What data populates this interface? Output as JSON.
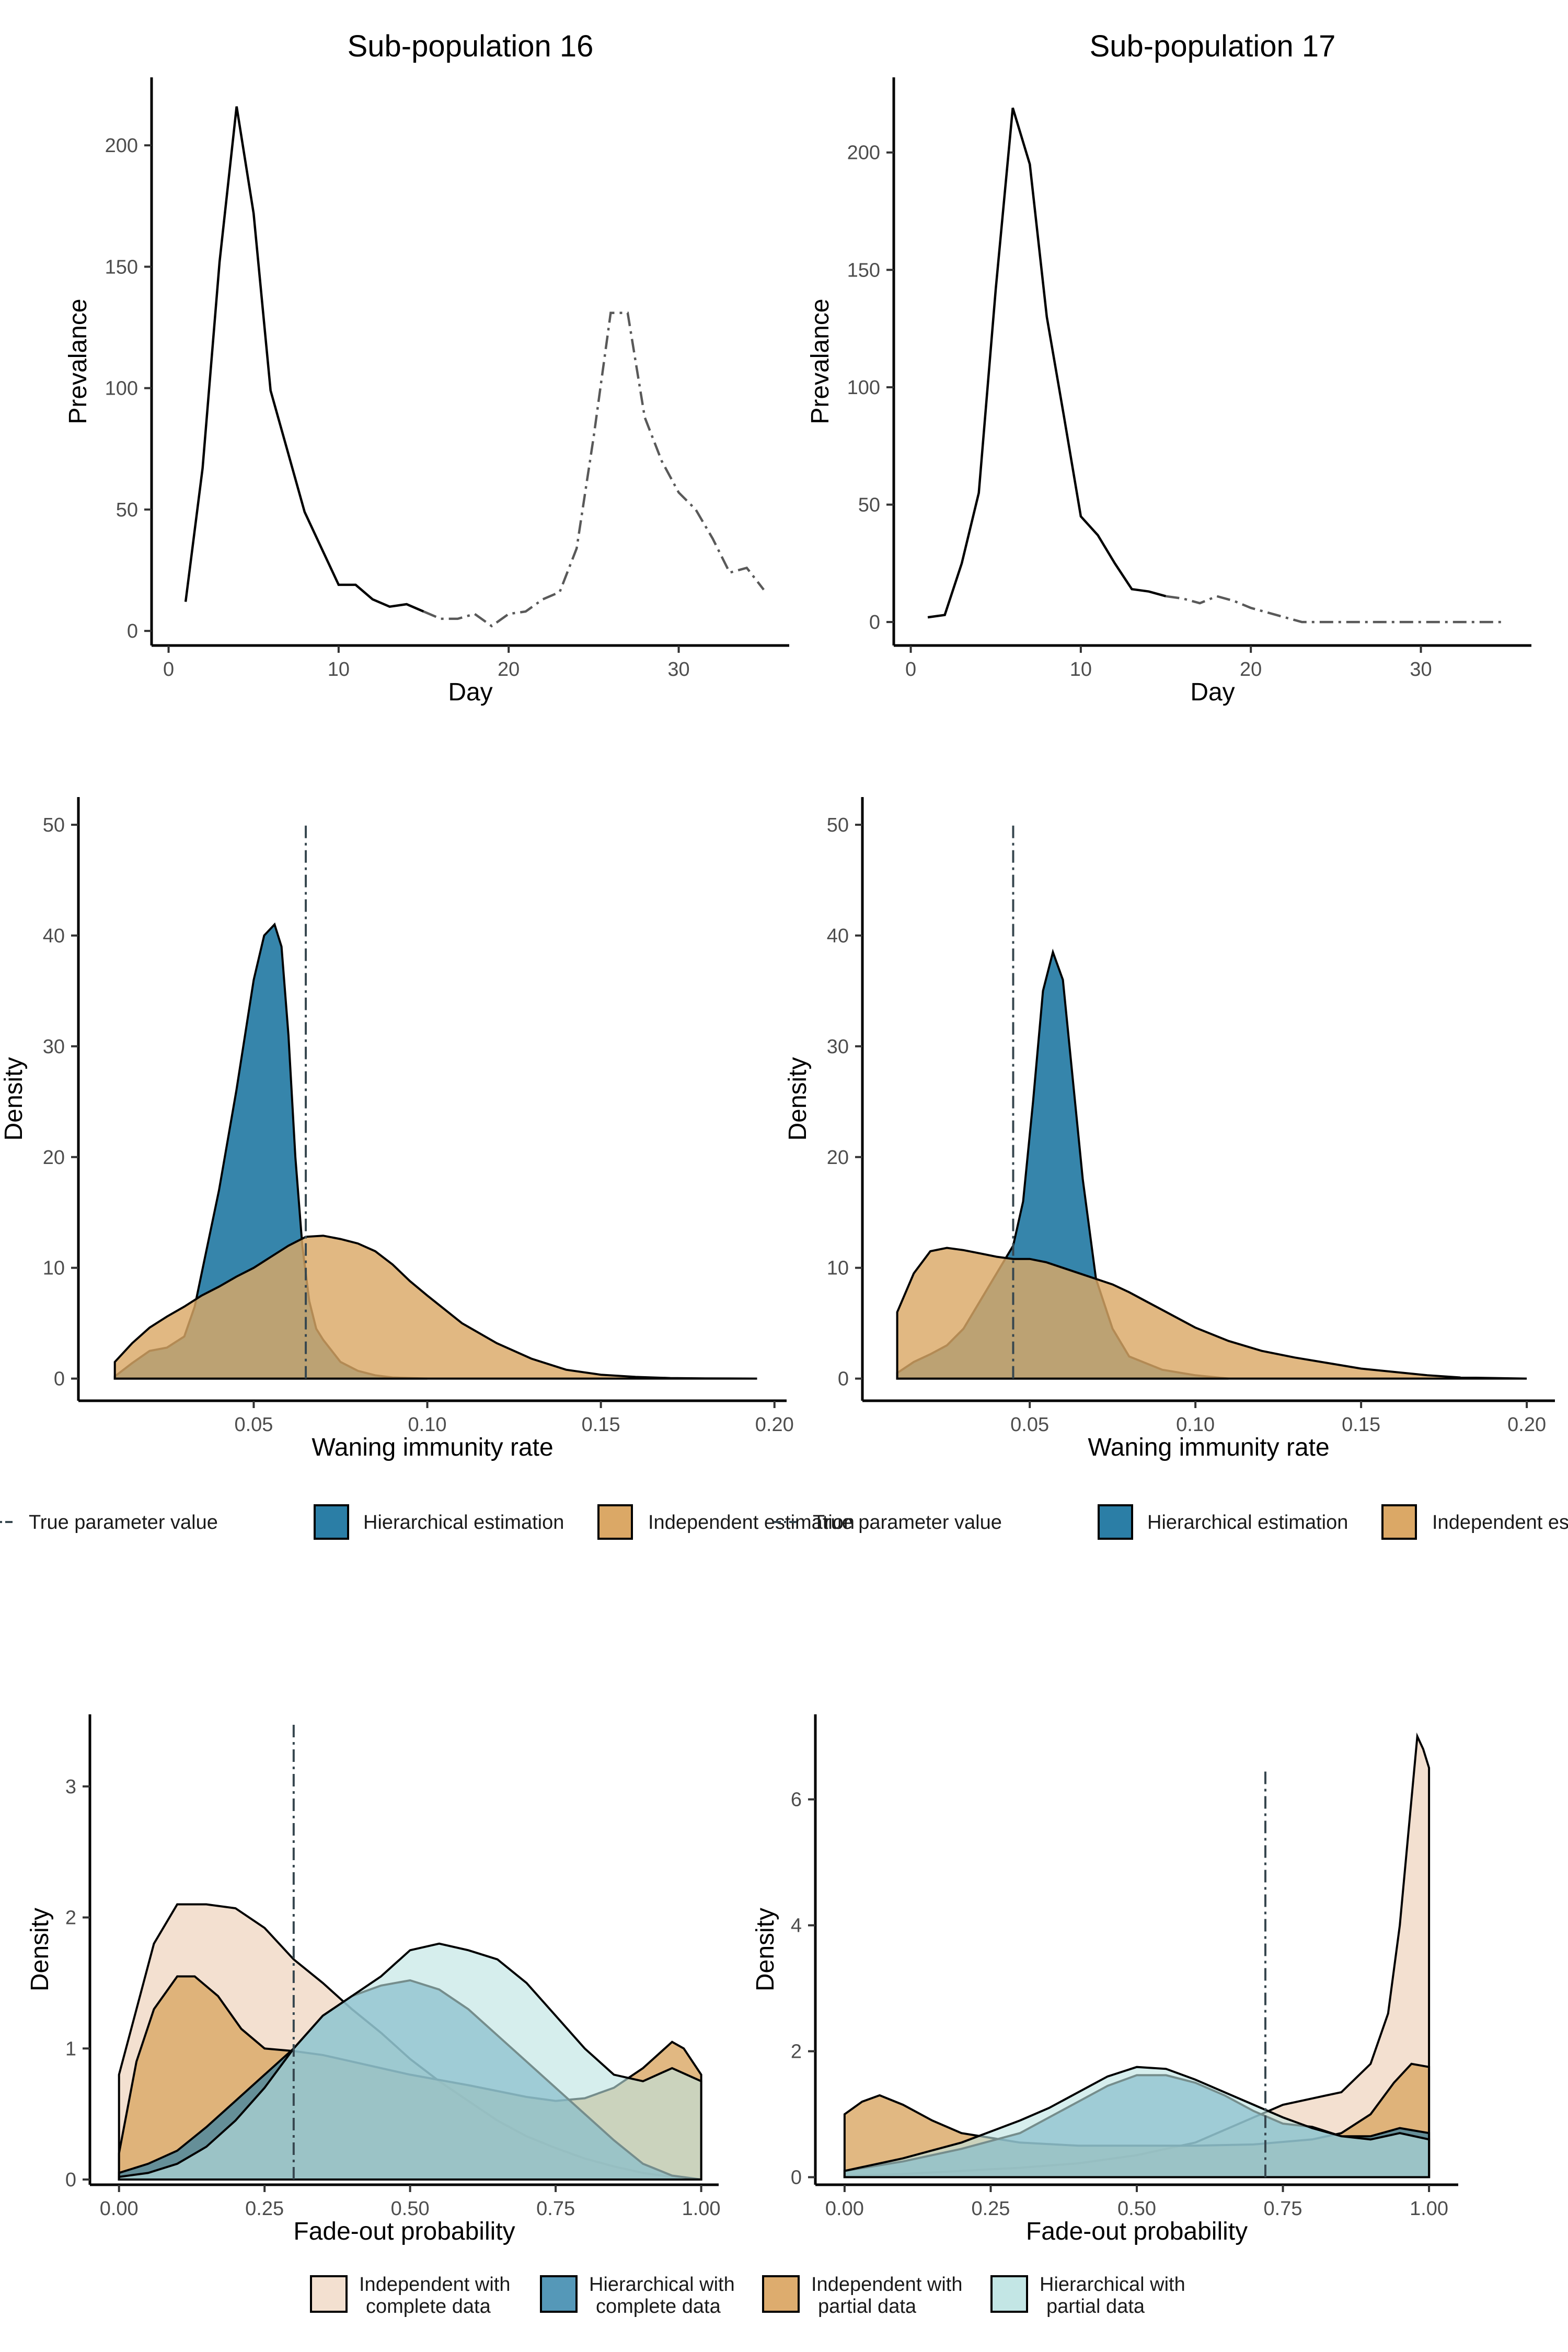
{
  "colors": {
    "hier_complete": "#2b7ea6",
    "indep_complete_fill": "#f0d9c6",
    "indep_partial": "#dba866",
    "hier_partial": "#bde3e2",
    "solid_line": "#000000",
    "dashed_line": "#595959",
    "true_line": "#37474f"
  },
  "prevalence": [
    {
      "title": "Sub-population 16",
      "xlabel": "Day",
      "ylabel": "Prevalance",
      "xlim": [
        -1,
        36.5
      ],
      "ylim": [
        -6,
        228
      ],
      "xticks": [
        0,
        10,
        20,
        30
      ],
      "yticks": [
        0,
        50,
        100,
        150,
        200
      ],
      "solid": {
        "x": [
          1,
          2,
          3,
          4,
          5,
          6,
          7,
          8,
          9,
          10,
          11,
          12,
          13,
          14,
          15
        ],
        "y": [
          12,
          67,
          152,
          216,
          172,
          99,
          74,
          49,
          34,
          19,
          19,
          13,
          10,
          11,
          8
        ]
      },
      "dashed": {
        "x": [
          15,
          16,
          17,
          18,
          19,
          20,
          21,
          22,
          23,
          24,
          25,
          26,
          27,
          28,
          29,
          30,
          31,
          32,
          33,
          34,
          35
        ],
        "y": [
          8,
          5,
          5,
          7,
          2,
          7,
          8,
          13,
          16,
          34,
          80,
          131,
          131,
          88,
          70,
          57,
          50,
          38,
          24,
          26,
          17
        ]
      }
    },
    {
      "title": "Sub-population 17",
      "xlabel": "Day",
      "ylabel": "Prevalance",
      "xlim": [
        -1,
        36.5
      ],
      "ylim": [
        -10,
        232
      ],
      "xticks": [
        0,
        10,
        20,
        30
      ],
      "yticks": [
        0,
        50,
        100,
        150,
        200
      ],
      "solid": {
        "x": [
          1,
          2,
          3,
          4,
          5,
          6,
          7,
          8,
          9,
          10,
          11,
          12,
          13,
          14,
          15
        ],
        "y": [
          2,
          3,
          25,
          55,
          142,
          219,
          195,
          130,
          88,
          45,
          37,
          25,
          14,
          13,
          11
        ]
      },
      "dashed": {
        "x": [
          15,
          16,
          17,
          18,
          19,
          20,
          21,
          22,
          23,
          24,
          25,
          26,
          27,
          28,
          29,
          30,
          31,
          32,
          33,
          34,
          35
        ],
        "y": [
          11,
          10,
          8,
          11,
          9,
          6,
          4,
          2,
          0,
          0,
          0,
          0,
          0,
          0,
          0,
          0,
          0,
          0,
          0,
          0,
          0
        ]
      }
    }
  ],
  "waning": [
    {
      "xlabel": "Waning immunity rate",
      "ylabel": "Density",
      "xlim": [
        -0.0005,
        0.2035
      ],
      "ylim": [
        -2,
        52.5
      ],
      "xticks": [
        0.05,
        0.1,
        0.15,
        0.2
      ],
      "xticklabels": [
        "0.05",
        "0.10",
        "0.15",
        "0.20"
      ],
      "yticks": [
        0,
        10,
        20,
        30,
        40,
        50
      ],
      "true_value": 0.065,
      "true_line_top": 50,
      "hierarchical": {
        "x": [
          0.01,
          0.015,
          0.02,
          0.025,
          0.03,
          0.033,
          0.036,
          0.04,
          0.045,
          0.05,
          0.053,
          0.056,
          0.058,
          0.06,
          0.062,
          0.064,
          0.066,
          0.068,
          0.07,
          0.075,
          0.08,
          0.085,
          0.09,
          0.1
        ],
        "y": [
          0.2,
          1.4,
          2.5,
          2.8,
          3.8,
          6.5,
          11,
          17,
          26,
          36,
          40,
          41,
          39,
          31,
          20,
          12,
          7,
          4.5,
          3.5,
          1.5,
          0.7,
          0.3,
          0.1,
          0
        ]
      },
      "independent": {
        "x": [
          0.01,
          0.015,
          0.02,
          0.025,
          0.03,
          0.035,
          0.04,
          0.045,
          0.05,
          0.055,
          0.06,
          0.065,
          0.07,
          0.075,
          0.08,
          0.085,
          0.09,
          0.095,
          0.1,
          0.11,
          0.12,
          0.13,
          0.14,
          0.15,
          0.16,
          0.17,
          0.18,
          0.195
        ],
        "y": [
          1.5,
          3.2,
          4.6,
          5.6,
          6.5,
          7.5,
          8.3,
          9.2,
          10,
          11,
          12,
          12.8,
          12.9,
          12.6,
          12.2,
          11.5,
          10.3,
          8.8,
          7.5,
          5,
          3.2,
          1.8,
          0.8,
          0.35,
          0.15,
          0.05,
          0.02,
          0
        ]
      }
    },
    {
      "xlabel": "Waning immunity rate",
      "ylabel": "Density",
      "xlim": [
        -0.0005,
        0.2085
      ],
      "ylim": [
        -2,
        52.5
      ],
      "xticks": [
        0.05,
        0.1,
        0.15,
        0.2
      ],
      "xticklabels": [
        "0.05",
        "0.10",
        "0.15",
        "0.20"
      ],
      "yticks": [
        0,
        10,
        20,
        30,
        40,
        50
      ],
      "true_value": 0.045,
      "true_line_top": 50,
      "hierarchical": {
        "x": [
          0.01,
          0.015,
          0.02,
          0.025,
          0.03,
          0.035,
          0.04,
          0.045,
          0.048,
          0.051,
          0.054,
          0.057,
          0.06,
          0.063,
          0.066,
          0.07,
          0.075,
          0.08,
          0.09,
          0.1,
          0.11
        ],
        "y": [
          0.5,
          1.5,
          2.2,
          3,
          4.5,
          7,
          9.5,
          12,
          16,
          25,
          35,
          38.5,
          36,
          27,
          18,
          9,
          4.5,
          2,
          0.8,
          0.3,
          0
        ]
      },
      "independent": {
        "x": [
          0.01,
          0.015,
          0.02,
          0.025,
          0.03,
          0.035,
          0.04,
          0.045,
          0.05,
          0.055,
          0.06,
          0.065,
          0.07,
          0.075,
          0.08,
          0.085,
          0.09,
          0.1,
          0.11,
          0.12,
          0.13,
          0.14,
          0.15,
          0.16,
          0.17,
          0.18,
          0.2
        ],
        "y": [
          6,
          9.5,
          11.5,
          11.8,
          11.6,
          11.3,
          11,
          10.8,
          10.8,
          10.5,
          10,
          9.5,
          9,
          8.5,
          7.8,
          7,
          6.2,
          4.6,
          3.4,
          2.5,
          1.9,
          1.4,
          0.9,
          0.6,
          0.3,
          0.1,
          0
        ]
      }
    }
  ],
  "waning_legend": [
    {
      "items": [
        "True parameter value",
        "Hierarchical estimation",
        "Independent estimation"
      ]
    },
    {
      "items": [
        "True parameter value",
        "Hierarchical estimation",
        "Independent estimation"
      ]
    }
  ],
  "fadeout": [
    {
      "xlabel": "Fade-out probability",
      "ylabel": "Density",
      "xlim": [
        -0.05,
        1.03
      ],
      "ylim": [
        -0.04,
        3.55
      ],
      "xticks": [
        0,
        0.25,
        0.5,
        0.75,
        1
      ],
      "xticklabels": [
        "0.00",
        "0.25",
        "0.50",
        "0.75",
        "1.00"
      ],
      "yticks": [
        0,
        1,
        2,
        3
      ],
      "true_value": 0.3,
      "true_line_top": 3.5,
      "series": {
        "indep_complete": {
          "x": [
            0,
            0.03,
            0.06,
            0.1,
            0.15,
            0.2,
            0.25,
            0.3,
            0.35,
            0.4,
            0.45,
            0.5,
            0.55,
            0.6,
            0.65,
            0.7,
            0.75,
            0.8,
            0.85,
            0.9,
            0.95,
            1
          ],
          "y": [
            0.8,
            1.3,
            1.8,
            2.1,
            2.1,
            2.07,
            1.92,
            1.68,
            1.5,
            1.3,
            1.12,
            0.92,
            0.75,
            0.6,
            0.45,
            0.33,
            0.24,
            0.16,
            0.1,
            0.05,
            0.02,
            0
          ]
        },
        "indep_partial": {
          "x": [
            0,
            0.03,
            0.06,
            0.1,
            0.13,
            0.17,
            0.21,
            0.25,
            0.3,
            0.35,
            0.4,
            0.5,
            0.6,
            0.7,
            0.75,
            0.8,
            0.85,
            0.9,
            0.95,
            0.97,
            1
          ],
          "y": [
            0.2,
            0.9,
            1.3,
            1.55,
            1.55,
            1.4,
            1.15,
            1.0,
            0.98,
            0.95,
            0.9,
            0.8,
            0.72,
            0.63,
            0.6,
            0.62,
            0.7,
            0.85,
            1.05,
            1.0,
            0.8
          ]
        },
        "hier_complete": {
          "x": [
            0,
            0.05,
            0.1,
            0.15,
            0.2,
            0.25,
            0.3,
            0.35,
            0.4,
            0.45,
            0.5,
            0.55,
            0.6,
            0.65,
            0.7,
            0.75,
            0.8,
            0.85,
            0.9,
            0.95,
            1
          ],
          "y": [
            0.05,
            0.12,
            0.22,
            0.4,
            0.6,
            0.8,
            1.0,
            1.25,
            1.4,
            1.48,
            1.52,
            1.45,
            1.3,
            1.1,
            0.9,
            0.7,
            0.5,
            0.3,
            0.12,
            0.03,
            0
          ]
        },
        "hier_partial": {
          "x": [
            0,
            0.05,
            0.1,
            0.15,
            0.2,
            0.25,
            0.3,
            0.35,
            0.4,
            0.45,
            0.5,
            0.55,
            0.6,
            0.65,
            0.7,
            0.75,
            0.8,
            0.85,
            0.9,
            0.95,
            1
          ],
          "y": [
            0.02,
            0.05,
            0.12,
            0.25,
            0.45,
            0.7,
            1.0,
            1.25,
            1.4,
            1.55,
            1.75,
            1.8,
            1.75,
            1.68,
            1.5,
            1.25,
            1.0,
            0.8,
            0.75,
            0.85,
            0.75
          ]
        }
      }
    },
    {
      "xlabel": "Fade-out probability",
      "ylabel": "Density",
      "xlim": [
        -0.05,
        1.05
      ],
      "ylim": [
        -0.12,
        7.35
      ],
      "xticks": [
        0,
        0.25,
        0.5,
        0.75,
        1
      ],
      "xticklabels": [
        "0.00",
        "0.25",
        "0.50",
        "0.75",
        "1.00"
      ],
      "yticks": [
        0,
        2,
        4,
        6
      ],
      "true_value": 0.72,
      "true_line_top": 6.5,
      "series": {
        "indep_complete": {
          "x": [
            0,
            0.1,
            0.2,
            0.3,
            0.4,
            0.5,
            0.6,
            0.7,
            0.75,
            0.8,
            0.85,
            0.9,
            0.93,
            0.95,
            0.97,
            0.98,
            0.99,
            1
          ],
          "y": [
            0.02,
            0.05,
            0.1,
            0.15,
            0.22,
            0.35,
            0.55,
            0.95,
            1.15,
            1.25,
            1.35,
            1.8,
            2.6,
            4.0,
            6.0,
            7.0,
            6.8,
            6.5
          ]
        },
        "indep_partial": {
          "x": [
            0,
            0.03,
            0.06,
            0.1,
            0.15,
            0.2,
            0.3,
            0.4,
            0.5,
            0.6,
            0.7,
            0.8,
            0.85,
            0.9,
            0.94,
            0.97,
            1
          ],
          "y": [
            1.0,
            1.2,
            1.3,
            1.15,
            0.9,
            0.7,
            0.55,
            0.5,
            0.5,
            0.5,
            0.52,
            0.6,
            0.7,
            1.0,
            1.5,
            1.8,
            1.75
          ]
        },
        "hier_complete": {
          "x": [
            0,
            0.1,
            0.2,
            0.3,
            0.4,
            0.45,
            0.5,
            0.55,
            0.6,
            0.65,
            0.7,
            0.75,
            0.8,
            0.85,
            0.9,
            0.95,
            1
          ],
          "y": [
            0.1,
            0.25,
            0.45,
            0.7,
            1.2,
            1.45,
            1.62,
            1.62,
            1.5,
            1.3,
            1.05,
            0.85,
            0.8,
            0.65,
            0.65,
            0.78,
            0.7
          ]
        },
        "hier_partial": {
          "x": [
            0,
            0.1,
            0.2,
            0.3,
            0.35,
            0.4,
            0.45,
            0.5,
            0.55,
            0.6,
            0.65,
            0.7,
            0.75,
            0.8,
            0.85,
            0.9,
            0.95,
            1
          ],
          "y": [
            0.1,
            0.3,
            0.55,
            0.9,
            1.1,
            1.35,
            1.6,
            1.75,
            1.72,
            1.55,
            1.35,
            1.15,
            0.95,
            0.78,
            0.65,
            0.6,
            0.7,
            0.6
          ]
        }
      }
    }
  ],
  "fadeout_legend": [
    {
      "key": "indep_complete",
      "line1": "Independent with",
      "line2": "complete data"
    },
    {
      "key": "hier_complete",
      "line1": "Hierarchical with",
      "line2": "complete data"
    },
    {
      "key": "indep_partial",
      "line1": "Independent with",
      "line2": "partial data"
    },
    {
      "key": "hier_partial",
      "line1": "Hierarchical with",
      "line2": "partial data"
    }
  ],
  "chart_data": [
    {
      "type": "line",
      "title": "Sub-population 16",
      "xlabel": "Day",
      "ylabel": "Prevalance",
      "series": [
        {
          "style": "solid",
          "x": [
            1,
            2,
            3,
            4,
            5,
            6,
            7,
            8,
            9,
            10,
            11,
            12,
            13,
            14,
            15
          ],
          "values": [
            12,
            67,
            152,
            216,
            172,
            99,
            74,
            49,
            34,
            19,
            19,
            13,
            10,
            11,
            8
          ]
        },
        {
          "style": "dashed",
          "x": [
            15,
            16,
            17,
            18,
            19,
            20,
            21,
            22,
            23,
            24,
            25,
            26,
            27,
            28,
            29,
            30,
            31,
            32,
            33,
            34,
            35
          ],
          "values": [
            8,
            5,
            5,
            7,
            2,
            7,
            8,
            13,
            16,
            34,
            80,
            131,
            131,
            88,
            70,
            57,
            50,
            38,
            24,
            26,
            17
          ]
        }
      ]
    },
    {
      "type": "line",
      "title": "Sub-population 17",
      "xlabel": "Day",
      "ylabel": "Prevalance",
      "series": [
        {
          "style": "solid",
          "x": [
            1,
            2,
            3,
            4,
            5,
            6,
            7,
            8,
            9,
            10,
            11,
            12,
            13,
            14,
            15
          ],
          "values": [
            2,
            3,
            25,
            55,
            142,
            219,
            195,
            130,
            88,
            45,
            37,
            25,
            14,
            13,
            11
          ]
        },
        {
          "style": "dashed",
          "x": [
            15,
            16,
            17,
            18,
            19,
            20,
            21,
            22,
            23,
            24,
            25,
            26,
            27,
            28,
            29,
            30,
            31,
            32,
            33,
            34,
            35
          ],
          "values": [
            11,
            10,
            8,
            11,
            9,
            6,
            4,
            2,
            0,
            0,
            0,
            0,
            0,
            0,
            0,
            0,
            0,
            0,
            0,
            0,
            0
          ]
        }
      ]
    },
    {
      "type": "area",
      "xlabel": "Waning immunity rate",
      "ylabel": "Density",
      "true_parameter_value": 0.065,
      "legend": [
        "True parameter value",
        "Hierarchical estimation",
        "Independent estimation"
      ]
    },
    {
      "type": "area",
      "xlabel": "Waning immunity rate",
      "ylabel": "Density",
      "true_parameter_value": 0.045,
      "legend": [
        "True parameter value",
        "Hierarchical estimation",
        "Independent estimation"
      ]
    },
    {
      "type": "area",
      "xlabel": "Fade-out probability",
      "ylabel": "Density",
      "true_parameter_value": 0.3,
      "legend": [
        "Independent with complete data",
        "Hierarchical with complete data",
        "Independent with partial data",
        "Hierarchical with partial data"
      ]
    },
    {
      "type": "area",
      "xlabel": "Fade-out probability",
      "ylabel": "Density",
      "true_parameter_value": 0.72,
      "legend": [
        "Independent with complete data",
        "Hierarchical with complete data",
        "Independent with partial data",
        "Hierarchical with partial data"
      ]
    }
  ]
}
